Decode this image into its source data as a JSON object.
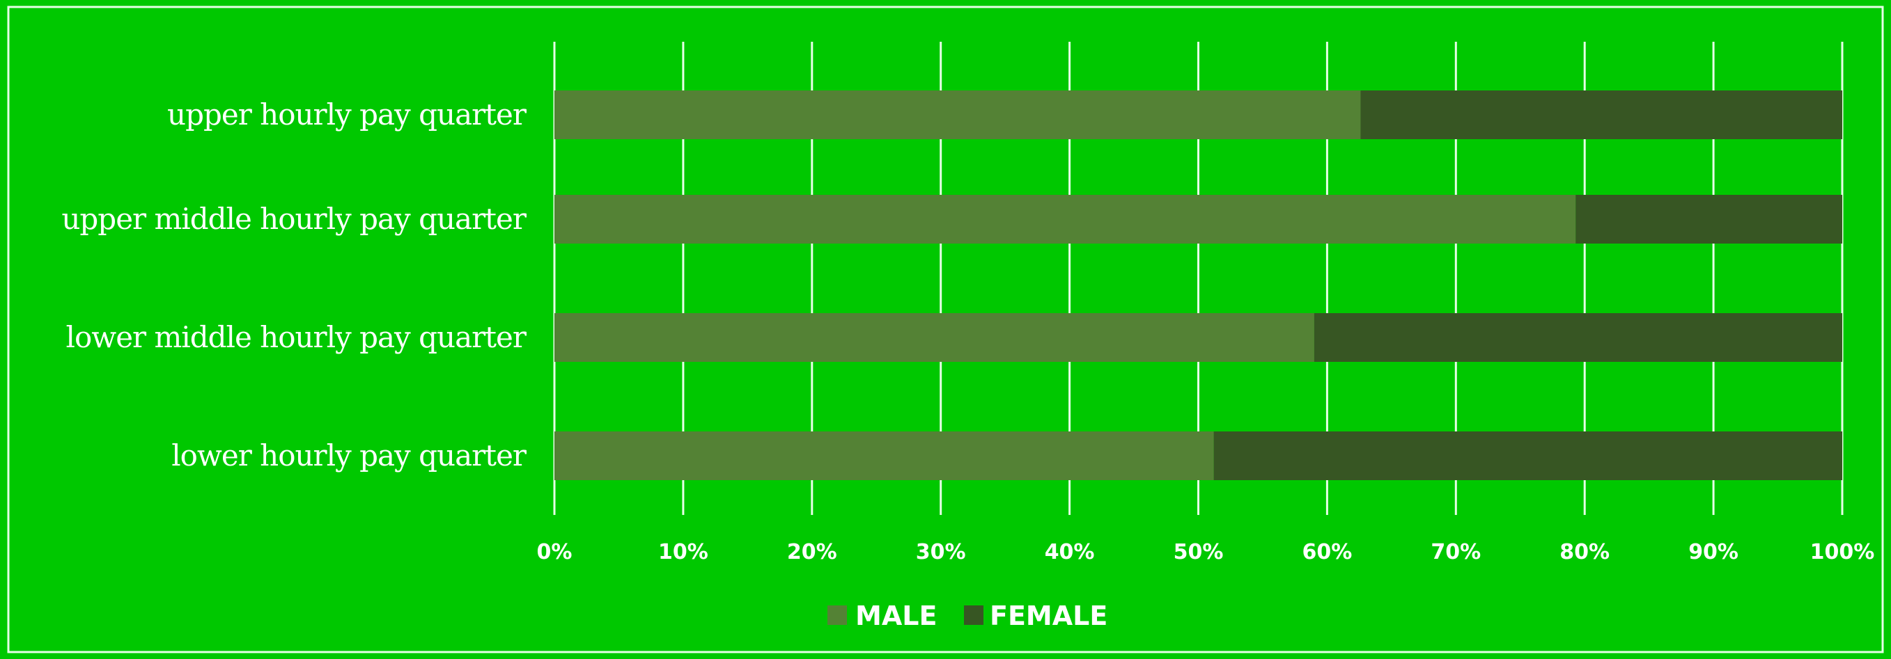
{
  "chart_data": {
    "type": "bar",
    "orientation": "horizontal",
    "stacked": true,
    "categories": [
      "upper hourly pay quarter",
      "upper middle hourly pay quarter",
      "lower middle hourly pay quarter",
      "lower hourly pay quarter"
    ],
    "series": [
      {
        "name": "MALE",
        "values": [
          62.6,
          79.3,
          59.0,
          51.2
        ],
        "color": "#548235"
      },
      {
        "name": "FEMALE",
        "values": [
          37.4,
          20.7,
          41.0,
          48.8
        ],
        "color": "#375623"
      }
    ],
    "xlim": [
      0,
      100
    ],
    "x_ticks": [
      "0%",
      "10%",
      "20%",
      "30%",
      "40%",
      "50%",
      "60%",
      "70%",
      "80%",
      "90%",
      "100%"
    ],
    "grid": true,
    "legend_position": "bottom",
    "colors": {
      "background": "#00c800",
      "grid": "#e6ffe6",
      "text": "#ffffff"
    }
  }
}
